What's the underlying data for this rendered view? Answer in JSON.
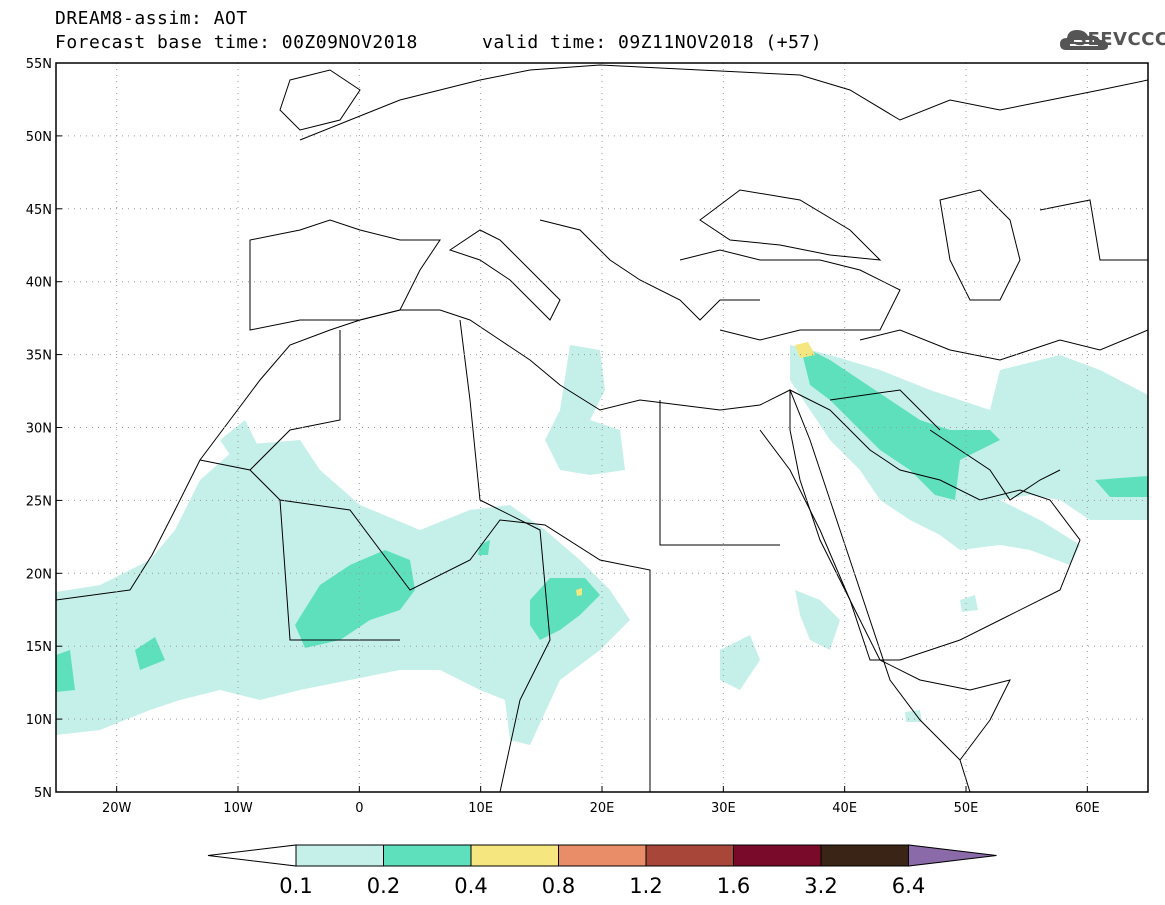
{
  "title": {
    "line1": "DREAM8-assim: AOT",
    "line2": "Forecast base time: 00Z09NOV2018",
    "line3": "valid time: 09Z11NOV2018 (+57)"
  },
  "logo": {
    "text": "SEEVCCC",
    "icon": "cloud-logo-icon"
  },
  "map": {
    "lon_range": [
      -25,
      65
    ],
    "lat_range": [
      5,
      55
    ],
    "lon_ticks": [
      "20W",
      "10W",
      "0",
      "10E",
      "20E",
      "30E",
      "40E",
      "50E",
      "60E"
    ],
    "lat_ticks": [
      "55N",
      "50N",
      "45N",
      "40N",
      "35N",
      "30N",
      "25N",
      "20N",
      "15N",
      "10N",
      "5N"
    ],
    "grid": "dotted"
  },
  "colorbar": {
    "labels": [
      "0.1",
      "0.2",
      "0.4",
      "0.8",
      "1.2",
      "1.6",
      "3.2",
      "6.4"
    ],
    "colors": [
      "#ffffff",
      "#c5f0ea",
      "#5ee0bc",
      "#f6e680",
      "#e98c68",
      "#a8463a",
      "#7a0a2a",
      "#3a2416",
      "#8a6aa8"
    ]
  }
}
